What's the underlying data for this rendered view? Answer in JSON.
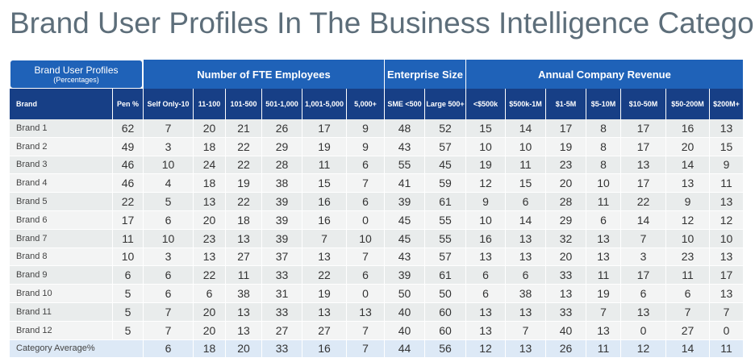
{
  "title": "Brand User Profiles In The Business Intelligence Category",
  "corner": {
    "title": "Brand User Profiles",
    "subtitle": "(Percentages)"
  },
  "groups": [
    "Number of FTE Employees",
    "Enterprise Size",
    "Annual Company Revenue"
  ],
  "columns": [
    "Brand",
    "Pen %",
    "Self Only-10",
    "11-100",
    "101-500",
    "501-1,000",
    "1,001-5,000",
    "5,000+",
    "SME <500",
    "Large 500+",
    "<$500k",
    "$500k-1M",
    "$1-5M",
    "$5-10M",
    "$10-50M",
    "$50-200M",
    "$200M+"
  ],
  "rows": [
    {
      "label": "Brand 1",
      "values": [
        62,
        7,
        20,
        21,
        26,
        17,
        9,
        48,
        52,
        15,
        14,
        17,
        8,
        17,
        16,
        13
      ]
    },
    {
      "label": "Brand 2",
      "values": [
        49,
        3,
        18,
        22,
        29,
        19,
        9,
        43,
        57,
        10,
        10,
        19,
        8,
        17,
        20,
        15
      ]
    },
    {
      "label": "Brand 3",
      "values": [
        46,
        10,
        24,
        22,
        28,
        11,
        6,
        55,
        45,
        19,
        11,
        23,
        8,
        13,
        14,
        9
      ]
    },
    {
      "label": "Brand 4",
      "values": [
        46,
        4,
        18,
        19,
        38,
        15,
        7,
        41,
        59,
        12,
        15,
        20,
        10,
        17,
        13,
        11
      ]
    },
    {
      "label": "Brand 5",
      "values": [
        22,
        5,
        13,
        22,
        39,
        16,
        6,
        39,
        61,
        9,
        6,
        28,
        11,
        22,
        9,
        13
      ]
    },
    {
      "label": "Brand 6",
      "values": [
        17,
        6,
        20,
        18,
        39,
        16,
        0,
        45,
        55,
        10,
        14,
        29,
        6,
        14,
        12,
        12
      ]
    },
    {
      "label": "Brand 7",
      "values": [
        11,
        10,
        23,
        13,
        39,
        7,
        10,
        45,
        55,
        16,
        13,
        32,
        13,
        7,
        10,
        10
      ]
    },
    {
      "label": "Brand 8",
      "values": [
        10,
        3,
        13,
        27,
        37,
        13,
        7,
        43,
        57,
        13,
        13,
        20,
        13,
        3,
        23,
        13
      ]
    },
    {
      "label": "Brand 9",
      "values": [
        6,
        6,
        22,
        11,
        33,
        22,
        6,
        39,
        61,
        6,
        6,
        33,
        11,
        17,
        11,
        17
      ]
    },
    {
      "label": "Brand 10",
      "values": [
        5,
        6,
        6,
        38,
        31,
        19,
        0,
        50,
        50,
        6,
        38,
        13,
        19,
        6,
        6,
        13
      ]
    },
    {
      "label": "Brand 11",
      "values": [
        5,
        7,
        20,
        13,
        33,
        13,
        13,
        40,
        60,
        13,
        13,
        33,
        7,
        13,
        7,
        7
      ]
    },
    {
      "label": "Brand 12",
      "values": [
        5,
        7,
        20,
        13,
        27,
        27,
        7,
        40,
        60,
        13,
        7,
        40,
        13,
        0,
        27,
        0
      ]
    }
  ],
  "average": {
    "label": "Category Average%",
    "values": [
      6,
      18,
      20,
      33,
      16,
      7,
      44,
      56,
      12,
      13,
      26,
      11,
      12,
      14,
      11
    ]
  }
}
